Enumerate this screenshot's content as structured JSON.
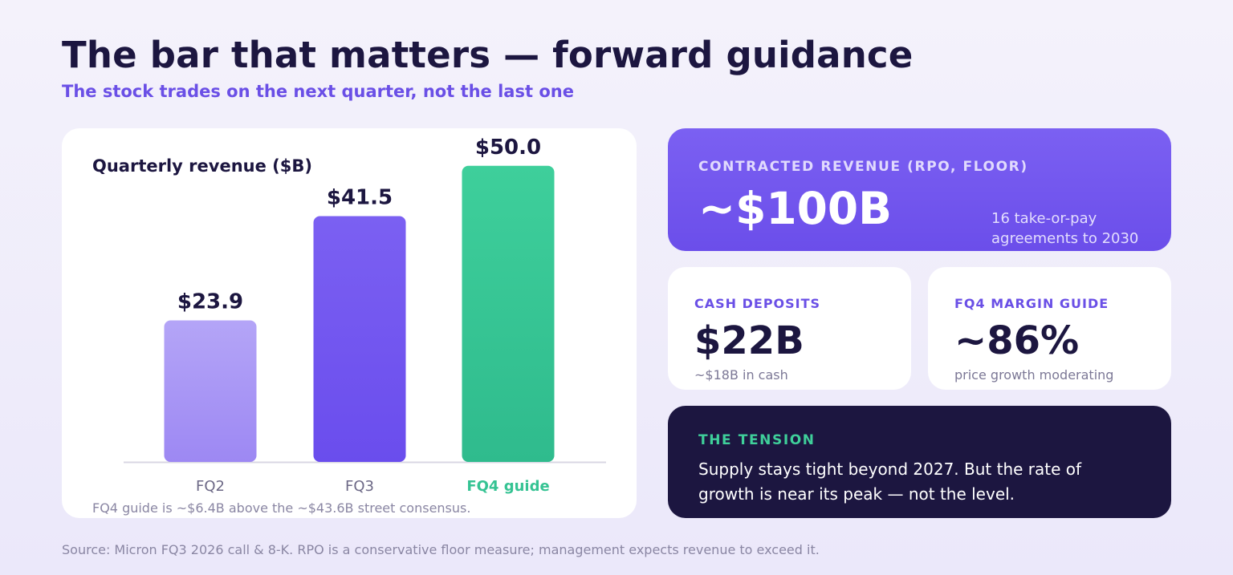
{
  "header": {
    "title": "The bar that matters — forward guidance",
    "subtitle": "The stock trades on the next quarter, not the last one"
  },
  "chart_data": {
    "type": "bar",
    "title": "Quarterly revenue ($B)",
    "categories": [
      "FQ2",
      "FQ3",
      "FQ4 guide"
    ],
    "values": [
      23.9,
      41.5,
      50.0
    ],
    "data_labels": [
      "$23.9",
      "$41.5",
      "$50.0"
    ],
    "xlabel": "",
    "ylabel": "",
    "ylim": [
      0,
      52
    ],
    "grid": false,
    "colors": [
      "#a99af5",
      "#6f52ee",
      "#35c393"
    ],
    "highlight_color": "#35c393",
    "annotation": "FQ4 guide is ~$6.4B above the ~$43.6B street consensus."
  },
  "cards": {
    "rpo": {
      "label": "CONTRACTED REVENUE (RPO, FLOOR)",
      "value": "~$100B",
      "note": "16 take-or-pay agreements to 2030"
    },
    "cash": {
      "label": "CASH DEPOSITS",
      "value": "$22B",
      "note": "~$18B in cash"
    },
    "margin": {
      "label": "FQ4 MARGIN GUIDE",
      "value": "~86%",
      "note": "price growth moderating"
    },
    "tension": {
      "label": "THE TENSION",
      "body": "Supply stays tight beyond 2027. But the rate of growth is near its peak — not the level."
    }
  },
  "footer": {
    "source": "Source: Micron FQ3 2026 call & 8-K. RPO is a conservative floor measure; management expects revenue to exceed it."
  }
}
